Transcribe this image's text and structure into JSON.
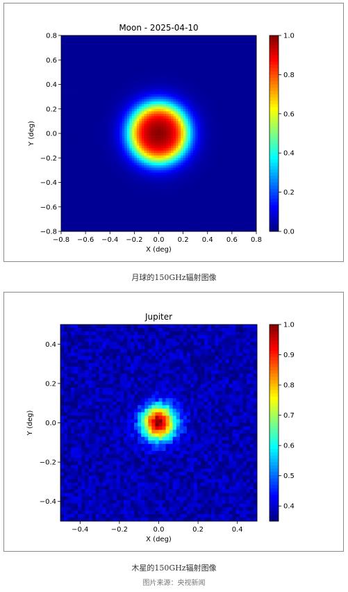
{
  "chart_data": [
    {
      "type": "heatmap",
      "title": "Moon - 2025-04-10",
      "xlabel": "X (deg)",
      "ylabel": "Y (deg)",
      "xlim": [
        -0.8,
        0.8
      ],
      "ylim": [
        -0.8,
        0.8
      ],
      "xticks": [
        "−0.8",
        "−0.6",
        "−0.4",
        "−0.2",
        "0.0",
        "0.2",
        "0.4",
        "0.6",
        "0.8"
      ],
      "yticks": [
        "−0.8",
        "−0.6",
        "−0.4",
        "−0.2",
        "0.0",
        "0.2",
        "0.4",
        "0.6",
        "0.8"
      ],
      "colorbar": {
        "min": 0.0,
        "max": 1.0,
        "ticks": [
          "0.0",
          "0.2",
          "0.4",
          "0.6",
          "0.8",
          "1.0"
        ]
      },
      "colormap": "jet",
      "source": {
        "x": 0.0,
        "y": 0.0,
        "radius_deg": 0.33,
        "peak": 1.0
      },
      "grid": false
    },
    {
      "type": "heatmap",
      "title": "Jupiter",
      "xlabel": "X (deg)",
      "ylabel": "Y (deg)",
      "xlim": [
        -0.5,
        0.5
      ],
      "ylim": [
        -0.5,
        0.5
      ],
      "xticks": [
        "−0.4",
        "−0.2",
        "0.0",
        "0.2",
        "0.4"
      ],
      "yticks": [
        "−0.4",
        "−0.2",
        "0.0",
        "0.2",
        "0.4"
      ],
      "colorbar": {
        "min": 0.35,
        "max": 1.0,
        "ticks": [
          "0.4",
          "0.5",
          "0.6",
          "0.7",
          "0.8",
          "0.9",
          "1.0"
        ]
      },
      "colormap": "jet",
      "source": {
        "x": 0.0,
        "y": 0.0,
        "radius_deg": 0.11,
        "peak": 1.0,
        "background": 0.38
      },
      "grid": false
    }
  ],
  "captions": {
    "moon": "月球的150GHz辐射图像",
    "jupiter": "木星的150GHz辐射图像",
    "credit": "图片来源：央视新闻"
  }
}
